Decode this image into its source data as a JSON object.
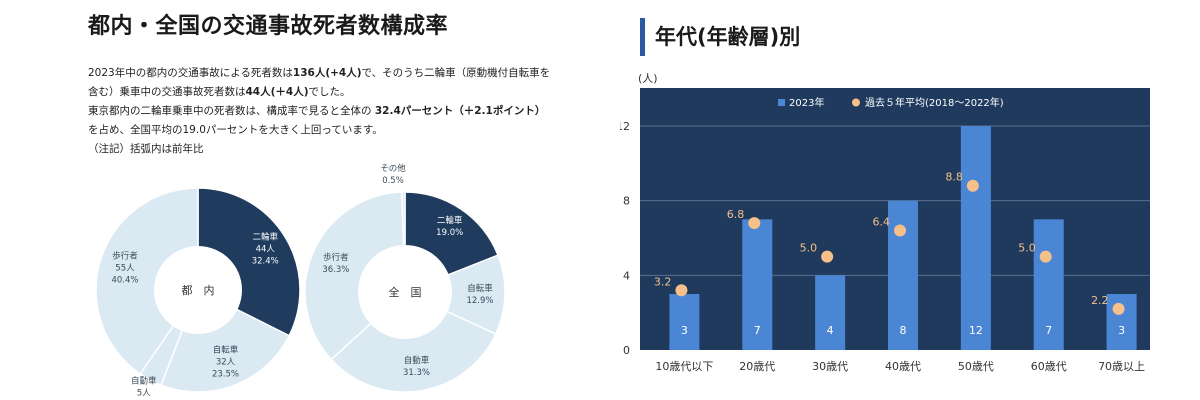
{
  "left": {
    "title": "都内・全国の交通事故死者数構成率",
    "paragraphs": [
      [
        "2023年中の都内の交通事故による死者数は",
        "136人(+4人)",
        "で、そのうち二輪車（原動機付自転車を"
      ],
      [
        "含む）乗車中の交通事故死者数は",
        "44人(＋4人)",
        "でした。"
      ],
      [
        "東京都内の二輪車乗車中の死者数は、構成率で見ると全体の ",
        "32.4パーセント（＋2.1ポイント）",
        ""
      ],
      [
        "を占め、全国平均の19.0パーセントを大きく上回っています。",
        "",
        ""
      ],
      [
        "（注記）括弧内は前年比",
        "",
        ""
      ]
    ]
  },
  "right": {
    "title": "年代(年齢層)別",
    "unit": "(人)"
  },
  "chart_data": [
    {
      "type": "pie",
      "center_label": "都　内",
      "slices": [
        {
          "name": "二輪車",
          "count": "44人",
          "pct": 32.4,
          "pct_label": "32.4%",
          "color": "#1f3b5e"
        },
        {
          "name": "自転車",
          "count": "32人",
          "pct": 23.5,
          "pct_label": "23.5%",
          "color": "#dbe9f3"
        },
        {
          "name": "自動車",
          "count": "5人",
          "pct": 3.7,
          "pct_label": "3.7%",
          "color": "#dbe9f3"
        },
        {
          "name": "歩行者",
          "count": "55人",
          "pct": 40.4,
          "pct_label": "40.4%",
          "color": "#dbe9f3"
        }
      ]
    },
    {
      "type": "pie",
      "center_label": "全　国",
      "slices": [
        {
          "name": "二輪車",
          "count": "",
          "pct": 19.0,
          "pct_label": "19.0%",
          "color": "#1f3b5e"
        },
        {
          "name": "自転車",
          "count": "",
          "pct": 12.9,
          "pct_label": "12.9%",
          "color": "#dbe9f3"
        },
        {
          "name": "自動車",
          "count": "",
          "pct": 31.3,
          "pct_label": "31.3%",
          "color": "#dbe9f3"
        },
        {
          "name": "歩行者",
          "count": "",
          "pct": 36.3,
          "pct_label": "36.3%",
          "color": "#dbe9f3"
        },
        {
          "name": "その他",
          "count": "",
          "pct": 0.5,
          "pct_label": "0.5%",
          "color": "#dbe9f3"
        }
      ]
    },
    {
      "type": "bar",
      "categories": [
        "10歳代以下",
        "20歳代",
        "30歳代",
        "40歳代",
        "50歳代",
        "60歳代",
        "70歳以上"
      ],
      "series": [
        {
          "name": "2023年",
          "kind": "bar",
          "color": "#4a86d4",
          "values": [
            3,
            7,
            4,
            8,
            12,
            7,
            3
          ],
          "labels": [
            "3",
            "7",
            "4",
            "8",
            "12",
            "7",
            "3"
          ]
        },
        {
          "name": "過去５年平均(2018～2022年)",
          "kind": "dot",
          "color": "#f5c08a",
          "values": [
            3.2,
            6.8,
            5.0,
            6.4,
            8.8,
            5.0,
            2.2
          ],
          "labels": [
            "3.2",
            "6.8",
            "5.0",
            "6.4",
            "8.8",
            "5.0",
            "2.2"
          ]
        }
      ],
      "ylim": [
        0,
        12
      ],
      "yticks": [
        "0",
        "4",
        "8",
        "12"
      ],
      "ytick_values": [
        0,
        4,
        8,
        12
      ],
      "grid": true,
      "legend": "top",
      "background": "#203a5e"
    }
  ]
}
